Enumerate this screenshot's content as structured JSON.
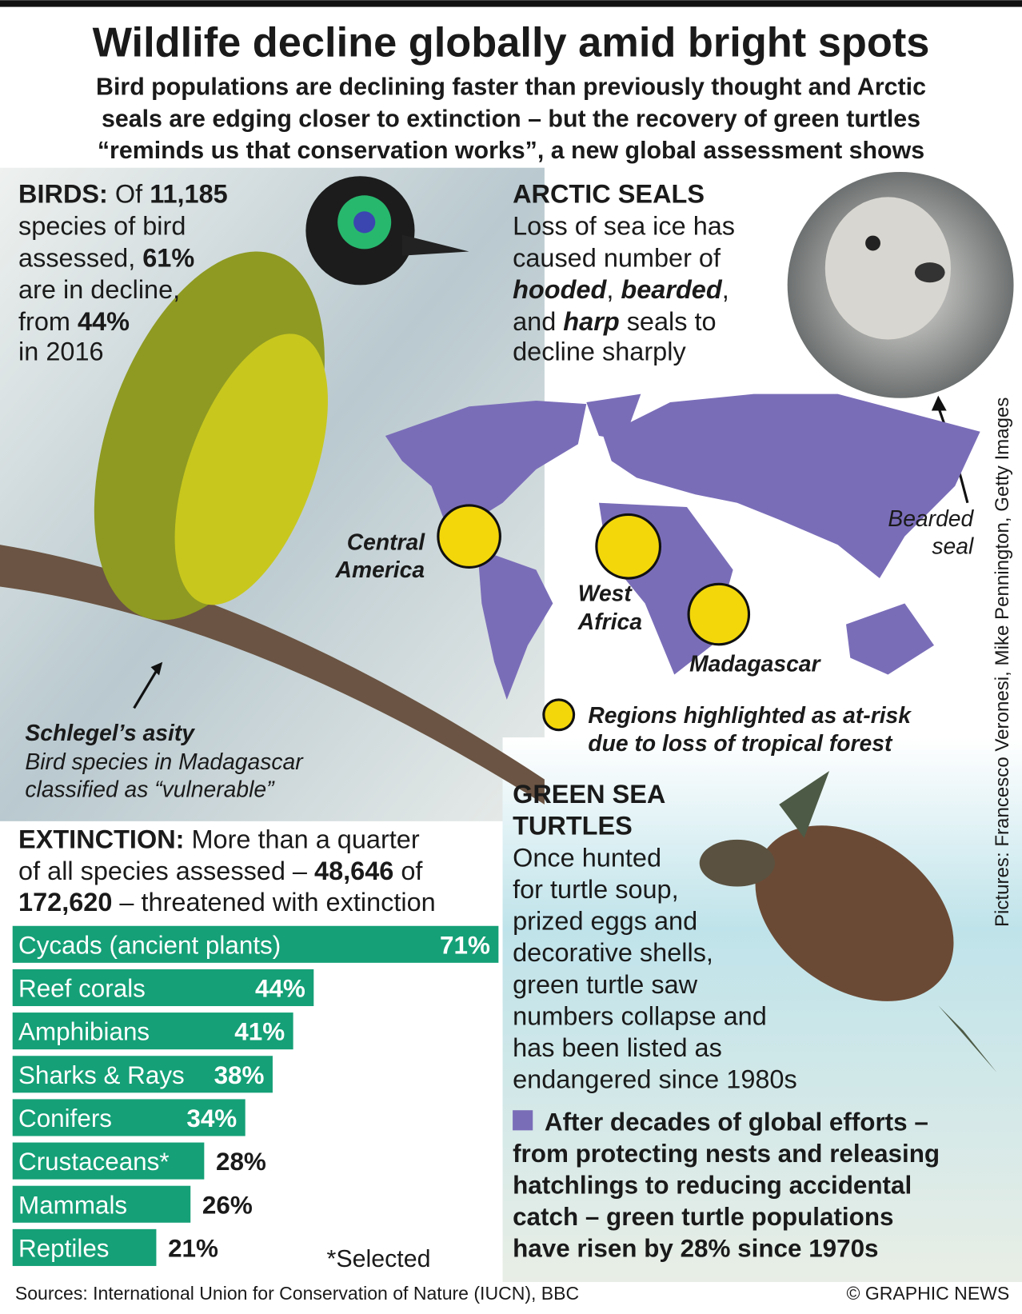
{
  "title": "Wildlife decline globally amid bright spots",
  "subtitle": [
    "Bird populations are declining faster than previously thought and Arctic",
    "seals are edging closer to extinction – but the recovery of green turtles",
    "“reminds us that conservation works”, a new global assessment shows"
  ],
  "birds": {
    "lines": [
      [
        "BIRDS:",
        " Of ",
        "11,185"
      ],
      [
        "species of bird"
      ],
      [
        "assessed, ",
        "61%"
      ],
      [
        "are in decline,"
      ],
      [
        "from ",
        "44%"
      ],
      [
        "in 2016"
      ]
    ],
    "caption": {
      "name": "Schlegel’s asity",
      "text": [
        "Bird species in Madagascar",
        "classified as “vulnerable”"
      ]
    }
  },
  "seals": {
    "heading": "ARCTIC SEALS",
    "lines": [
      [
        "Loss of sea ice has"
      ],
      [
        "caused number of"
      ],
      [
        "hooded",
        ", ",
        "bearded",
        ","
      ],
      [
        "and ",
        "harp",
        " seals to"
      ],
      [
        "decline sharply"
      ]
    ],
    "caption": [
      "Bearded",
      "seal"
    ]
  },
  "map": {
    "labels": {
      "central_america": [
        "Central",
        "America"
      ],
      "west_africa": [
        "West",
        "Africa"
      ],
      "madagascar": "Madagascar"
    },
    "legend": [
      "Regions highlighted as at-risk",
      "due to loss of tropical forest"
    ]
  },
  "turtles": {
    "heading": [
      "GREEN SEA",
      "TURTLES"
    ],
    "lines": [
      "Once hunted",
      "for turtle soup,",
      "prized eggs and",
      "decorative shells,",
      "green turtle saw",
      "numbers collapse and",
      "has been listed as",
      "endangered since 1980s"
    ],
    "note": [
      "After decades of global efforts –",
      "from protecting nests and releasing",
      "hatchlings to reducing accidental",
      "catch – green turtle populations",
      "have risen by 28% since 1970s"
    ]
  },
  "extinction": {
    "lines": [
      [
        "EXTINCTION:",
        " More than a quarter"
      ],
      [
        "of all species assessed – ",
        "48,646",
        " of"
      ],
      [
        "172,620",
        " – threatened with extinction"
      ]
    ]
  },
  "chart_data": {
    "type": "bar",
    "orientation": "horizontal",
    "color": "#15a077",
    "categories": [
      "Cycads (ancient plants)",
      "Reef corals",
      "Amphibians",
      "Sharks & Rays",
      "Conifers",
      "Crustaceans*",
      "Mammals",
      "Reptiles"
    ],
    "values": [
      71,
      44,
      41,
      38,
      34,
      28,
      26,
      21
    ],
    "value_labels": [
      "71%",
      "44%",
      "41%",
      "38%",
      "34%",
      "28%",
      "26%",
      "21%"
    ],
    "note": "*Selected"
  },
  "footer": {
    "sources": "Sources: International Union for Conservation of Nature (IUCN), BBC",
    "copyright": "© GRAPHIC NEWS",
    "credit": "Pictures: Francesco Veronesi, Mike Pennington, Getty Images"
  }
}
